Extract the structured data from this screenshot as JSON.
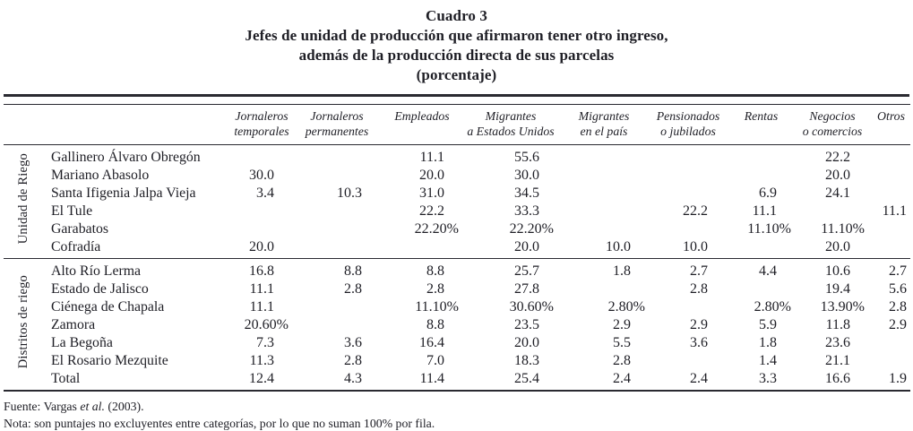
{
  "title": {
    "label": "Cuadro 3",
    "line2": "Jefes de unidad de producción que afirmaron tener otro ingreso,",
    "line3": "además de la producción directa de sus parcelas",
    "line4": "(porcentaje)"
  },
  "table": {
    "column_headers": [
      {
        "label": "Jornaleros temporales",
        "lines": [
          "Jornaleros",
          "temporales"
        ]
      },
      {
        "label": "Jornaleros permanentes",
        "lines": [
          "Jornaleros",
          "permanentes"
        ]
      },
      {
        "label": "Empleados",
        "lines": [
          "Empleados"
        ]
      },
      {
        "label": "Migrantes a Estados Unidos",
        "lines": [
          "Migrantes",
          "a Estados Unidos"
        ]
      },
      {
        "label": "Migrantes en el país",
        "lines": [
          "Migrantes",
          "en el país"
        ]
      },
      {
        "label": "Pensionados o jubilados",
        "lines": [
          "Pensionados",
          "o jubilados"
        ]
      },
      {
        "label": "Rentas",
        "lines": [
          "Rentas"
        ]
      },
      {
        "label": "Negocios o comercios",
        "lines": [
          "Negocios",
          "o comercios"
        ]
      },
      {
        "label": "Otros",
        "lines": [
          "Otros"
        ]
      }
    ],
    "groups": [
      {
        "label": "Unidad de Riego",
        "rows": [
          {
            "name": "Gallinero Álvaro Obregón",
            "values": [
              "",
              "",
              "11.1",
              "55.6",
              "",
              "",
              "",
              "22.2",
              ""
            ]
          },
          {
            "name": "Mariano Abasolo",
            "values": [
              "30.0",
              "",
              "20.0",
              "30.0",
              "",
              "",
              "",
              "20.0",
              ""
            ]
          },
          {
            "name": "Santa Ifigenia Jalpa Vieja",
            "values": [
              "3.4",
              "10.3",
              "31.0",
              "34.5",
              "",
              "",
              "6.9",
              "24.1",
              ""
            ]
          },
          {
            "name": "El Tule",
            "values": [
              "",
              "",
              "22.2",
              "33.3",
              "",
              "22.2",
              "11.1",
              "",
              "11.1"
            ]
          },
          {
            "name": "Garabatos",
            "values": [
              "",
              "",
              "22.20%",
              "22.20%",
              "",
              "",
              "11.10%",
              "11.10%",
              ""
            ]
          },
          {
            "name": "Cofradía",
            "values": [
              "20.0",
              "",
              "",
              "20.0",
              "10.0",
              "10.0",
              "",
              "20.0",
              ""
            ]
          }
        ]
      },
      {
        "label": "Distritos de riego",
        "rows": [
          {
            "name": "Alto Río Lerma",
            "values": [
              "16.8",
              "8.8",
              "8.8",
              "25.7",
              "1.8",
              "2.7",
              "4.4",
              "10.6",
              "2.7"
            ]
          },
          {
            "name": "Estado de Jalisco",
            "values": [
              "11.1",
              "2.8",
              "2.8",
              "27.8",
              "",
              "2.8",
              "",
              "19.4",
              "5.6"
            ]
          },
          {
            "name": "Ciénega de Chapala",
            "values": [
              "11.1",
              "",
              "11.10%",
              "30.60%",
              "2.80%",
              "",
              "2.80%",
              "13.90%",
              "2.8"
            ]
          },
          {
            "name": "Zamora",
            "values": [
              "20.60%",
              "",
              "8.8",
              "23.5",
              "2.9",
              "2.9",
              "5.9",
              "11.8",
              "2.9"
            ]
          },
          {
            "name": "La Begoña",
            "values": [
              "7.3",
              "3.6",
              "16.4",
              "20.0",
              "5.5",
              "3.6",
              "1.8",
              "23.6",
              ""
            ]
          },
          {
            "name": "El Rosario Mezquite",
            "values": [
              "11.3",
              "2.8",
              "7.0",
              "18.3",
              "2.8",
              "",
              "1.4",
              "21.1",
              ""
            ]
          },
          {
            "name": "Total",
            "values": [
              "12.4",
              "4.3",
              "11.4",
              "25.4",
              "2.4",
              "2.4",
              "3.3",
              "16.6",
              "1.9"
            ]
          }
        ]
      }
    ]
  },
  "footnotes": {
    "fuente_prefix": "Fuente: Vargas ",
    "fuente_italic": "et al.",
    "fuente_suffix": " (2003).",
    "nota": "Nota: son puntajes no excluyentes entre categorías, por lo que no suman 100% por fila."
  },
  "colors": {
    "text": "#1e1e25",
    "rule": "#2a2a31",
    "background": "#ffffff"
  }
}
